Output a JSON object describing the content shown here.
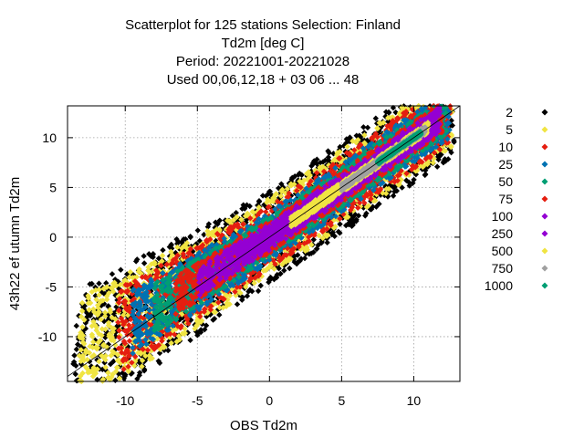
{
  "chart_data": {
    "type": "scatter",
    "title_lines": [
      "Scatterplot for  125 stations Selection: Finland",
      "Td2m [deg C]",
      "Period: 20221001-20221028",
      "Used  00,06,12,18  + 03 06 ... 48"
    ],
    "xlabel": "OBS Td2m",
    "ylabel": "43h22 ef utumn Td2m",
    "xlim": [
      -14,
      13.2
    ],
    "ylim": [
      -14.5,
      13.2
    ],
    "xticks": [
      -10,
      -5,
      0,
      5,
      10
    ],
    "yticks": [
      -10,
      -5,
      0,
      5,
      10
    ],
    "grid": true,
    "diagonal_line": true,
    "legend_placement": "right",
    "legend": [
      {
        "label": "2",
        "color": "#000000"
      },
      {
        "label": "5",
        "color": "#f0e442"
      },
      {
        "label": "10",
        "color": "#e51e10"
      },
      {
        "label": "25",
        "color": "#0072b2"
      },
      {
        "label": "50",
        "color": "#009e73"
      },
      {
        "label": "75",
        "color": "#e51e10"
      },
      {
        "label": "100",
        "color": "#9400d3"
      },
      {
        "label": "250",
        "color": "#9400d3"
      },
      {
        "label": "500",
        "color": "#f0e442"
      },
      {
        "label": "750",
        "color": "#a0a0a0"
      },
      {
        "label": "1000",
        "color": "#009e73"
      }
    ],
    "density_bands": [
      {
        "level": "2",
        "color": "#000000",
        "half_width": 4.6,
        "x_range": [
          -13.6,
          12.8
        ]
      },
      {
        "level": "5",
        "color": "#f0e442",
        "half_width": 3.9,
        "x_range": [
          -13.2,
          12.7
        ]
      },
      {
        "level": "10",
        "color": "#e51e10",
        "half_width": 3.2,
        "x_range": [
          -10.5,
          12.6
        ]
      },
      {
        "level": "25",
        "color": "#0072b2",
        "half_width": 2.5,
        "x_range": [
          -9.5,
          12.5
        ]
      },
      {
        "level": "50",
        "color": "#009e73",
        "half_width": 2.0,
        "x_range": [
          -8.0,
          12.3
        ]
      },
      {
        "level": "75",
        "color": "#e51e10",
        "half_width": 1.6,
        "x_range": [
          -6.5,
          12.0
        ]
      },
      {
        "level": "100",
        "color": "#9400d3",
        "half_width": 1.3,
        "x_range": [
          -5.0,
          11.8
        ]
      },
      {
        "level": "250",
        "color": "#9400d3",
        "half_width": 0.9,
        "x_range": [
          -2.0,
          11.5
        ]
      },
      {
        "level": "500",
        "color": "#f0e442",
        "half_width": 0.55,
        "x_range": [
          1.5,
          11.0
        ]
      },
      {
        "level": "750",
        "color": "#a0a0a0",
        "half_width": 0.35,
        "x_range": [
          5.0,
          10.8
        ]
      },
      {
        "level": "1000",
        "color": "#009e73",
        "half_width": 0.2,
        "x_range": [
          7.5,
          10.5
        ]
      }
    ]
  }
}
